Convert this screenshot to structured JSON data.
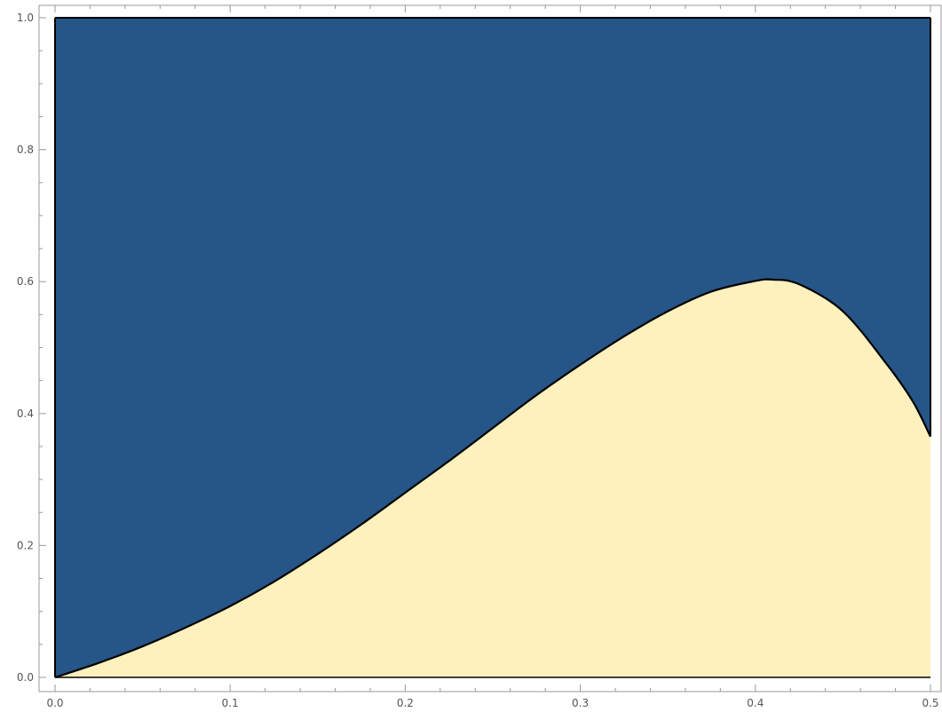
{
  "chart_data": {
    "type": "area",
    "title": "",
    "xlabel": "",
    "ylabel": "",
    "xlim": [
      0,
      0.5
    ],
    "ylim": [
      0,
      1
    ],
    "grid": false,
    "legend": "none",
    "x_ticks": [
      "0.0",
      "0.1",
      "0.2",
      "0.3",
      "0.4",
      "0.5"
    ],
    "y_ticks": [
      "0.0",
      "0.2",
      "0.4",
      "0.6",
      "0.8",
      "1.0"
    ],
    "x_tick_values": [
      0,
      0.1,
      0.2,
      0.3,
      0.4,
      0.5
    ],
    "y_tick_values": [
      0,
      0.2,
      0.4,
      0.6,
      0.8,
      1.0
    ],
    "upper_region_color": "#265588",
    "lower_region_color": "#FFF1BE",
    "boundary_color": "#000000",
    "boundary_curve": {
      "x": [
        0,
        0.025,
        0.05,
        0.075,
        0.1,
        0.125,
        0.15,
        0.175,
        0.2,
        0.225,
        0.25,
        0.275,
        0.3,
        0.325,
        0.35,
        0.375,
        0.4,
        0.41,
        0.425,
        0.45,
        0.475,
        0.49,
        0.5
      ],
      "y": [
        0,
        0.022,
        0.047,
        0.076,
        0.108,
        0.145,
        0.187,
        0.232,
        0.28,
        0.328,
        0.378,
        0.428,
        0.474,
        0.517,
        0.555,
        0.585,
        0.601,
        0.603,
        0.596,
        0.555,
        0.475,
        0.418,
        0.365
      ]
    }
  }
}
